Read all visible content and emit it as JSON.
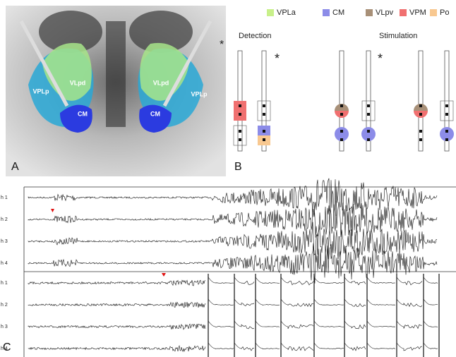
{
  "panel_labels": [
    "A",
    "B",
    "C"
  ],
  "panel_a": {
    "regions": [
      "VLpd",
      "VPLp",
      "CM",
      "VLpd",
      "VPLp",
      "CM"
    ],
    "asterisk": "*"
  },
  "panel_b": {
    "legend": [
      "VPLa",
      "CM",
      "VLpv",
      "VPM",
      "Po"
    ],
    "titles": [
      "Detection",
      "Stimulation"
    ],
    "asterisks": [
      "*",
      "*"
    ]
  },
  "panel_c": {
    "upper_channels": [
      "h 1",
      "h 2",
      "h 3",
      "h 4"
    ],
    "lower_channels": [
      "h 1",
      "h 2",
      "h 3",
      "h 4"
    ]
  }
}
